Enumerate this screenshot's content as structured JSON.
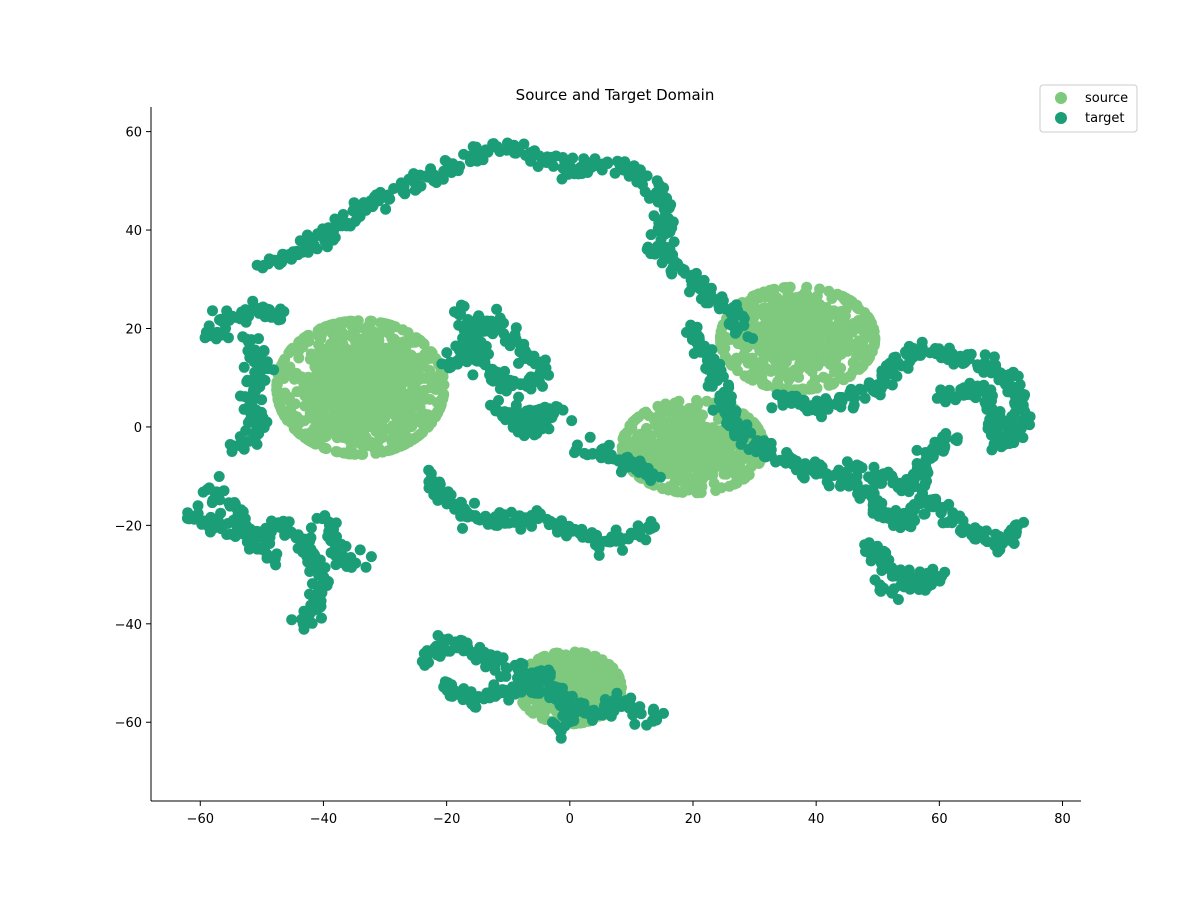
{
  "chart_data": {
    "type": "scatter",
    "title": "Source and Target Domain",
    "xlabel": "",
    "ylabel": "",
    "xlim": [
      -68,
      83
    ],
    "ylim": [
      -76,
      65
    ],
    "xticks": [
      -60,
      -40,
      -20,
      0,
      20,
      40,
      60,
      80
    ],
    "yticks": [
      -60,
      -40,
      -20,
      0,
      20,
      40,
      60
    ],
    "xtick_labels": [
      "−60",
      "−40",
      "−20",
      "0",
      "20",
      "40",
      "60",
      "80"
    ],
    "ytick_labels": [
      "−60",
      "−40",
      "−20",
      "0",
      "20",
      "40",
      "60"
    ],
    "grid": false,
    "legend_position": "top-right",
    "spines": [
      "left",
      "bottom"
    ],
    "series": [
      {
        "name": "source",
        "color": "#7fc97f",
        "clusters": [
          {
            "center": [
              -34,
              8
            ],
            "spread": [
              13,
              13
            ],
            "count": 900
          },
          {
            "center": [
              37,
              18
            ],
            "spread": [
              12,
              10
            ],
            "count": 520
          },
          {
            "center": [
              20,
              -4
            ],
            "spread": [
              11,
              9
            ],
            "count": 480
          },
          {
            "center": [
              0,
              -53
            ],
            "spread": [
              8,
              7
            ],
            "count": 420
          }
        ]
      },
      {
        "name": "target",
        "color": "#1b9e77",
        "paths": [
          [
            [
              -58,
              18
            ],
            [
              -56,
              22
            ],
            [
              -50,
              24
            ],
            [
              -46,
              22
            ]
          ],
          [
            [
              -50,
              33
            ],
            [
              -44,
              36
            ],
            [
              -38,
              40
            ],
            [
              -32,
              46
            ],
            [
              -26,
              49
            ],
            [
              -20,
              52
            ],
            [
              -16,
              55
            ],
            [
              -10,
              57
            ],
            [
              -5,
              55
            ],
            [
              0,
              52
            ],
            [
              4,
              54
            ],
            [
              10,
              52
            ],
            [
              14,
              48
            ],
            [
              16,
              43
            ],
            [
              14,
              36
            ],
            [
              18,
              32
            ],
            [
              22,
              28
            ],
            [
              26,
              24
            ],
            [
              28,
              18
            ]
          ],
          [
            [
              -52,
              18
            ],
            [
              -50,
              12
            ],
            [
              -52,
              6
            ],
            [
              -50,
              0
            ],
            [
              -54,
              -4
            ]
          ],
          [
            [
              -58,
              -12
            ],
            [
              -54,
              -18
            ],
            [
              -50,
              -24
            ],
            [
              -48,
              -28
            ]
          ],
          [
            [
              -62,
              -18
            ],
            [
              -58,
              -20
            ],
            [
              -52,
              -22
            ],
            [
              -46,
              -20
            ],
            [
              -42,
              -26
            ],
            [
              -40,
              -32
            ],
            [
              -42,
              -38
            ],
            [
              -44,
              -40
            ]
          ],
          [
            [
              -40,
              -18
            ],
            [
              -38,
              -24
            ],
            [
              -36,
              -28
            ],
            [
              -34,
              -26
            ]
          ],
          [
            [
              -20,
              12
            ],
            [
              -14,
              22
            ],
            [
              -10,
              18
            ],
            [
              -6,
              14
            ],
            [
              -4,
              10
            ],
            [
              -8,
              8
            ],
            [
              -12,
              10
            ],
            [
              -16,
              16
            ],
            [
              -18,
              24
            ]
          ],
          [
            [
              -12,
              4
            ],
            [
              -8,
              2
            ],
            [
              -6,
              -2
            ],
            [
              -4,
              2
            ],
            [
              -2,
              4
            ],
            [
              -10,
              0
            ]
          ],
          [
            [
              -24,
              -10
            ],
            [
              -20,
              -14
            ],
            [
              -16,
              -18
            ],
            [
              -10,
              -20
            ],
            [
              -6,
              -18
            ],
            [
              -2,
              -20
            ],
            [
              2,
              -22
            ],
            [
              6,
              -24
            ],
            [
              10,
              -22
            ],
            [
              14,
              -20
            ]
          ],
          [
            [
              2,
              -4
            ],
            [
              6,
              -6
            ],
            [
              10,
              -8
            ],
            [
              14,
              -10
            ]
          ],
          [
            [
              20,
              20
            ],
            [
              22,
              14
            ],
            [
              24,
              8
            ],
            [
              26,
              2
            ],
            [
              30,
              -4
            ],
            [
              34,
              -6
            ],
            [
              38,
              -8
            ],
            [
              42,
              -10
            ],
            [
              46,
              -12
            ],
            [
              50,
              -16
            ],
            [
              54,
              -20
            ],
            [
              58,
              -14
            ],
            [
              62,
              -18
            ],
            [
              66,
              -22
            ],
            [
              70,
              -24
            ],
            [
              74,
              -20
            ]
          ],
          [
            [
              34,
              6
            ],
            [
              40,
              4
            ],
            [
              46,
              6
            ],
            [
              50,
              8
            ],
            [
              54,
              14
            ],
            [
              58,
              16
            ],
            [
              64,
              14
            ],
            [
              70,
              12
            ],
            [
              72,
              8
            ],
            [
              74,
              4
            ],
            [
              72,
              -2
            ],
            [
              70,
              -4
            ],
            [
              68,
              6
            ],
            [
              66,
              8
            ],
            [
              60,
              6
            ]
          ],
          [
            [
              46,
              -8
            ],
            [
              50,
              -10
            ],
            [
              56,
              -12
            ],
            [
              58,
              -6
            ],
            [
              62,
              -2
            ]
          ],
          [
            [
              48,
              -24
            ],
            [
              52,
              -28
            ],
            [
              56,
              -32
            ],
            [
              60,
              -30
            ],
            [
              50,
              -34
            ]
          ],
          [
            [
              -24,
              -48
            ],
            [
              -20,
              -44
            ],
            [
              -16,
              -46
            ],
            [
              -12,
              -48
            ],
            [
              -8,
              -50
            ],
            [
              -4,
              -54
            ],
            [
              0,
              -56
            ],
            [
              4,
              -58
            ],
            [
              8,
              -56
            ],
            [
              12,
              -58
            ],
            [
              14,
              -60
            ]
          ],
          [
            [
              -20,
              -52
            ],
            [
              -16,
              -56
            ],
            [
              -12,
              -54
            ],
            [
              -8,
              -52
            ],
            [
              -4,
              -50
            ],
            [
              0,
              -58
            ],
            [
              -2,
              -62
            ]
          ]
        ],
        "density": 7
      }
    ]
  }
}
